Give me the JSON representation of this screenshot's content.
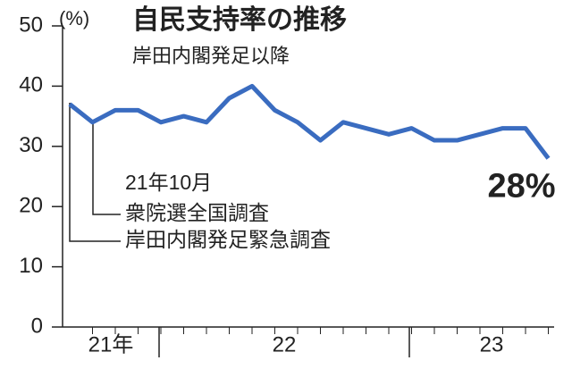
{
  "chart_data": {
    "type": "line",
    "title": "自民支持率の推移",
    "subtitle": "岸田内閣発足以降",
    "y_label": "(%)",
    "categories": [
      null,
      null,
      null,
      null,
      null,
      null,
      null,
      null,
      null,
      null,
      null,
      null,
      null,
      null,
      null,
      null,
      null,
      null,
      null,
      null,
      null,
      null
    ],
    "year_labels": [
      "21年",
      "22",
      "23"
    ],
    "series": [
      {
        "color": "#3a6cc0",
        "values": [
          37,
          34,
          36,
          36,
          34,
          35,
          34,
          38,
          40,
          36,
          34,
          31,
          34,
          33,
          32,
          33,
          31,
          31,
          32,
          33,
          33,
          28
        ],
        "value_labels": [
          null,
          null,
          null,
          null,
          null,
          null,
          null,
          null,
          null,
          null,
          null,
          null,
          null,
          null,
          null,
          null,
          null,
          null,
          null,
          null,
          null,
          "28%"
        ]
      }
    ],
    "annotations": [
      "21年10月",
      "衆院選全国調査",
      "岸田内閣発足緊急調査"
    ],
    "ylim": [
      0,
      50
    ],
    "yticks": [
      0,
      10,
      20,
      30,
      40,
      50
    ]
  }
}
